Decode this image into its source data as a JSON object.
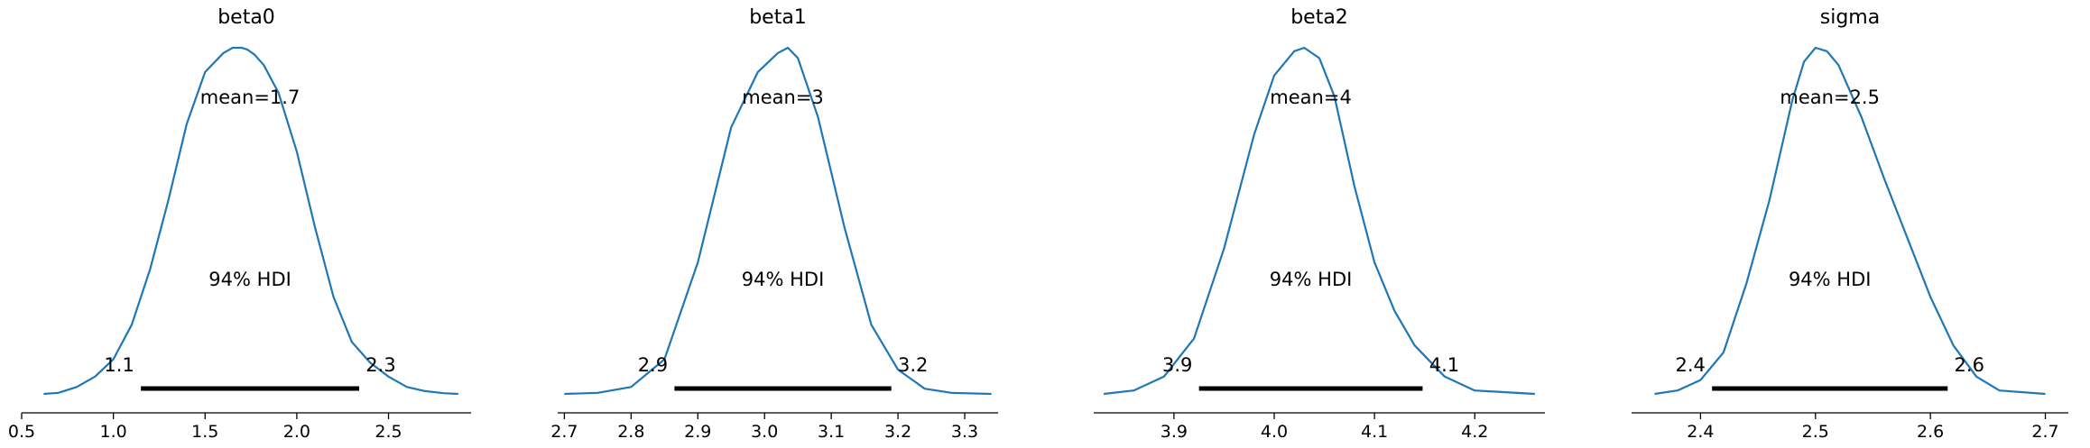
{
  "chart_data": [
    {
      "type": "density",
      "title": "beta0",
      "mean_label": "mean=1.7",
      "hdi_label": "94% HDI",
      "hdi": [
        1.15,
        2.34
      ],
      "hdi_low_label": "1.1",
      "hdi_high_label": "2.3",
      "xlim": [
        0.5,
        2.95
      ],
      "ticks": [
        0.5,
        1.0,
        1.5,
        2.0,
        2.5
      ],
      "tick_labels": [
        "0.5",
        "1.0",
        "1.5",
        "2.0",
        "2.5"
      ],
      "density": {
        "x": [
          0.62,
          0.7,
          0.8,
          0.9,
          1.0,
          1.1,
          1.2,
          1.3,
          1.4,
          1.5,
          1.6,
          1.65,
          1.7,
          1.73,
          1.77,
          1.82,
          1.9,
          2.0,
          2.1,
          2.2,
          2.3,
          2.4,
          2.5,
          2.6,
          2.7,
          2.8,
          2.88
        ],
        "y": [
          0.0,
          0.003,
          0.02,
          0.05,
          0.1,
          0.2,
          0.36,
          0.56,
          0.78,
          0.93,
          0.985,
          1.0,
          1.0,
          0.995,
          0.98,
          0.95,
          0.87,
          0.7,
          0.48,
          0.28,
          0.15,
          0.09,
          0.05,
          0.02,
          0.008,
          0.002,
          0.0
        ]
      }
    },
    {
      "type": "density",
      "title": "beta1",
      "mean_label": "mean=3",
      "hdi_label": "94% HDI",
      "hdi": [
        2.865,
        3.19
      ],
      "hdi_low_label": "2.9",
      "hdi_high_label": "3.2",
      "xlim": [
        2.69,
        3.35
      ],
      "ticks": [
        2.7,
        2.8,
        2.9,
        3.0,
        3.1,
        3.2,
        3.3
      ],
      "tick_labels": [
        "2.7",
        "2.8",
        "2.9",
        "3.0",
        "3.1",
        "3.2",
        "3.3"
      ],
      "density": {
        "x": [
          2.7,
          2.75,
          2.8,
          2.85,
          2.9,
          2.95,
          2.99,
          3.02,
          3.035,
          3.05,
          3.08,
          3.12,
          3.16,
          3.2,
          3.24,
          3.28,
          3.34
        ],
        "y": [
          0.0,
          0.003,
          0.02,
          0.1,
          0.38,
          0.77,
          0.93,
          0.985,
          1.0,
          0.97,
          0.8,
          0.48,
          0.2,
          0.07,
          0.015,
          0.003,
          0.0
        ]
      }
    },
    {
      "type": "density",
      "title": "beta2",
      "mean_label": "mean=4",
      "hdi_label": "94% HDI",
      "hdi": [
        3.925,
        4.148
      ],
      "hdi_low_label": "3.9",
      "hdi_high_label": "4.1",
      "xlim": [
        3.82,
        4.27
      ],
      "ticks": [
        3.9,
        4.0,
        4.1,
        4.2
      ],
      "tick_labels": [
        "3.9",
        "4.0",
        "4.1",
        "4.2"
      ],
      "density": {
        "x": [
          3.83,
          3.86,
          3.89,
          3.92,
          3.95,
          3.98,
          4.0,
          4.02,
          4.03,
          4.045,
          4.06,
          4.08,
          4.1,
          4.12,
          4.14,
          4.17,
          4.2,
          4.26
        ],
        "y": [
          0.0,
          0.01,
          0.05,
          0.16,
          0.42,
          0.75,
          0.92,
          0.99,
          1.0,
          0.97,
          0.86,
          0.6,
          0.38,
          0.24,
          0.14,
          0.05,
          0.01,
          0.0
        ]
      }
    },
    {
      "type": "density",
      "title": "sigma",
      "mean_label": "mean=2.5",
      "hdi_label": "94% HDI",
      "hdi": [
        2.41,
        2.615
      ],
      "hdi_low_label": "2.4",
      "hdi_high_label": "2.6",
      "xlim": [
        2.34,
        2.72
      ],
      "ticks": [
        2.4,
        2.5,
        2.6,
        2.7
      ],
      "tick_labels": [
        "2.4",
        "2.5",
        "2.6",
        "2.7"
      ],
      "density": {
        "x": [
          2.36,
          2.38,
          2.4,
          2.42,
          2.44,
          2.46,
          2.48,
          2.49,
          2.5,
          2.51,
          2.52,
          2.54,
          2.56,
          2.58,
          2.6,
          2.62,
          2.64,
          2.66,
          2.7
        ],
        "y": [
          0.0,
          0.01,
          0.04,
          0.12,
          0.32,
          0.56,
          0.85,
          0.96,
          1.0,
          0.99,
          0.95,
          0.8,
          0.62,
          0.45,
          0.28,
          0.14,
          0.05,
          0.01,
          0.0
        ]
      }
    }
  ]
}
